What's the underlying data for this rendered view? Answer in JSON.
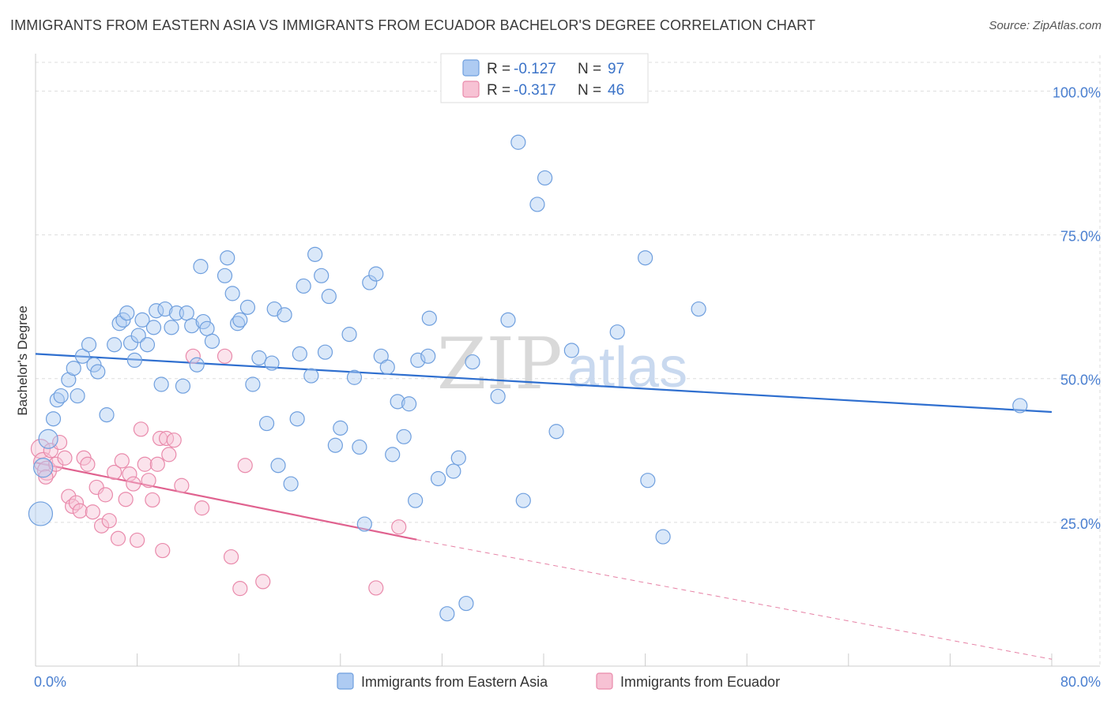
{
  "title": "IMMIGRANTS FROM EASTERN ASIA VS IMMIGRANTS FROM ECUADOR BACHELOR'S DEGREE CORRELATION CHART",
  "source": "Source: ZipAtlas.com",
  "colors": {
    "blue_fill": "#aecbf2",
    "blue_stroke": "#6f9fde",
    "blue_line": "#2f6fcf",
    "pink_fill": "#f7c2d4",
    "pink_stroke": "#e98aab",
    "pink_line": "#e0628f",
    "tick_text": "#4a7fd0",
    "grid": "#dddddd"
  },
  "legend": {
    "r_label": "R =",
    "n_label": "N =",
    "rows": [
      {
        "series": "blue",
        "r": "-0.127",
        "n": "97"
      },
      {
        "series": "pink",
        "r": "-0.317",
        "n": "46"
      }
    ]
  },
  "bottom_legend": [
    {
      "series": "blue",
      "label": "Immigrants from Eastern Asia"
    },
    {
      "series": "pink",
      "label": "Immigrants from Ecuador"
    }
  ],
  "watermark": {
    "part1": "ZIP",
    "part2": "atlas"
  },
  "chart_data": {
    "type": "scatter",
    "title": "IMMIGRANTS FROM EASTERN ASIA VS IMMIGRANTS FROM ECUADOR BACHELOR'S DEGREE CORRELATION CHART",
    "xlabel": "",
    "ylabel": "Bachelor's Degree",
    "xlim": [
      0,
      80
    ],
    "ylim": [
      0,
      105
    ],
    "x_tick_labels": [
      {
        "value": 0,
        "label": "0.0%"
      },
      {
        "value": 80,
        "label": "80.0%"
      }
    ],
    "y_tick_labels": [
      {
        "value": 25,
        "label": "25.0%"
      },
      {
        "value": 50,
        "label": "50.0%"
      },
      {
        "value": 75,
        "label": "75.0%"
      },
      {
        "value": 100,
        "label": "100.0%"
      }
    ],
    "grid": true,
    "legend_position": "top-center",
    "series": [
      {
        "name": "Immigrants from Eastern Asia",
        "key": "blue",
        "trend": {
          "x": [
            0,
            80
          ],
          "y": [
            54.3,
            44.2
          ]
        },
        "points": [
          [
            0.4,
            26.5
          ],
          [
            0.6,
            34.5
          ],
          [
            1.0,
            39.5
          ],
          [
            1.4,
            43.0
          ],
          [
            1.7,
            46.3
          ],
          [
            2.0,
            47.0
          ],
          [
            2.6,
            49.8
          ],
          [
            3.0,
            51.8
          ],
          [
            3.3,
            47.0
          ],
          [
            3.7,
            53.9
          ],
          [
            4.2,
            55.9
          ],
          [
            4.6,
            52.4
          ],
          [
            4.9,
            51.2
          ],
          [
            5.6,
            43.7
          ],
          [
            6.2,
            55.9
          ],
          [
            6.6,
            59.6
          ],
          [
            6.9,
            60.2
          ],
          [
            7.2,
            61.4
          ],
          [
            7.5,
            56.2
          ],
          [
            7.8,
            53.2
          ],
          [
            8.1,
            57.5
          ],
          [
            8.4,
            60.2
          ],
          [
            8.8,
            55.9
          ],
          [
            9.3,
            58.9
          ],
          [
            9.5,
            61.8
          ],
          [
            9.9,
            49.0
          ],
          [
            10.2,
            62.1
          ],
          [
            10.7,
            58.9
          ],
          [
            11.1,
            61.4
          ],
          [
            11.6,
            48.7
          ],
          [
            11.9,
            61.4
          ],
          [
            12.3,
            59.2
          ],
          [
            12.7,
            52.4
          ],
          [
            13.0,
            69.5
          ],
          [
            13.2,
            59.9
          ],
          [
            13.5,
            58.7
          ],
          [
            13.9,
            56.5
          ],
          [
            14.9,
            67.9
          ],
          [
            15.1,
            71.0
          ],
          [
            15.5,
            64.8
          ],
          [
            15.9,
            59.6
          ],
          [
            16.1,
            60.2
          ],
          [
            16.7,
            62.4
          ],
          [
            17.1,
            49.0
          ],
          [
            17.6,
            53.6
          ],
          [
            18.2,
            42.2
          ],
          [
            18.6,
            52.7
          ],
          [
            18.8,
            62.1
          ],
          [
            19.1,
            34.9
          ],
          [
            19.6,
            61.1
          ],
          [
            20.1,
            31.7
          ],
          [
            20.6,
            43.0
          ],
          [
            20.8,
            54.3
          ],
          [
            21.1,
            66.1
          ],
          [
            21.7,
            50.5
          ],
          [
            22.0,
            71.6
          ],
          [
            22.5,
            67.9
          ],
          [
            22.8,
            54.6
          ],
          [
            23.1,
            64.3
          ],
          [
            23.6,
            38.4
          ],
          [
            24.0,
            41.4
          ],
          [
            24.7,
            57.7
          ],
          [
            25.1,
            50.2
          ],
          [
            25.5,
            38.1
          ],
          [
            25.9,
            24.7
          ],
          [
            26.3,
            66.7
          ],
          [
            26.8,
            68.2
          ],
          [
            27.2,
            53.9
          ],
          [
            27.7,
            52.0
          ],
          [
            28.1,
            36.8
          ],
          [
            28.5,
            46.0
          ],
          [
            29.0,
            39.9
          ],
          [
            29.4,
            45.6
          ],
          [
            29.9,
            28.8
          ],
          [
            30.1,
            53.2
          ],
          [
            30.9,
            53.9
          ],
          [
            31.7,
            32.6
          ],
          [
            32.4,
            9.1
          ],
          [
            32.9,
            33.9
          ],
          [
            33.3,
            36.2
          ],
          [
            33.9,
            10.9
          ],
          [
            34.4,
            52.9
          ],
          [
            36.4,
            46.9
          ],
          [
            37.2,
            60.2
          ],
          [
            38.0,
            91.1
          ],
          [
            38.4,
            28.8
          ],
          [
            39.5,
            80.3
          ],
          [
            40.1,
            84.9
          ],
          [
            41.0,
            40.8
          ],
          [
            42.2,
            54.9
          ],
          [
            45.8,
            58.1
          ],
          [
            48.2,
            32.3
          ],
          [
            49.4,
            22.5
          ],
          [
            52.2,
            62.1
          ],
          [
            77.5,
            45.3
          ],
          [
            48.0,
            71.0
          ],
          [
            31.0,
            60.5
          ]
        ]
      },
      {
        "name": "Immigrants from Ecuador",
        "key": "pink",
        "trend": {
          "x": [
            0,
            30.0
          ],
          "y": [
            35.4,
            22.0
          ]
        },
        "trend_dashed": {
          "x": [
            30.0,
            80
          ],
          "y": [
            22.0,
            1.2
          ]
        },
        "points": [
          [
            0.4,
            37.8
          ],
          [
            0.6,
            35.5
          ],
          [
            0.9,
            34.0
          ],
          [
            1.2,
            37.5
          ],
          [
            1.6,
            35.1
          ],
          [
            1.9,
            38.9
          ],
          [
            2.3,
            36.2
          ],
          [
            2.6,
            29.5
          ],
          [
            2.9,
            27.8
          ],
          [
            3.2,
            28.4
          ],
          [
            3.5,
            27.0
          ],
          [
            3.8,
            36.2
          ],
          [
            4.1,
            35.1
          ],
          [
            4.5,
            26.8
          ],
          [
            4.8,
            31.1
          ],
          [
            5.2,
            24.4
          ],
          [
            5.5,
            29.8
          ],
          [
            5.8,
            25.3
          ],
          [
            6.2,
            33.7
          ],
          [
            6.5,
            22.2
          ],
          [
            6.8,
            35.7
          ],
          [
            7.1,
            29.0
          ],
          [
            7.4,
            33.4
          ],
          [
            7.7,
            31.7
          ],
          [
            8.0,
            21.9
          ],
          [
            8.3,
            41.2
          ],
          [
            8.6,
            35.1
          ],
          [
            8.9,
            32.3
          ],
          [
            9.2,
            28.9
          ],
          [
            9.6,
            35.1
          ],
          [
            9.8,
            39.6
          ],
          [
            10.0,
            20.1
          ],
          [
            10.3,
            39.6
          ],
          [
            10.5,
            36.8
          ],
          [
            10.9,
            39.3
          ],
          [
            11.5,
            31.4
          ],
          [
            12.4,
            53.9
          ],
          [
            13.1,
            27.5
          ],
          [
            14.9,
            53.9
          ],
          [
            15.4,
            19.0
          ],
          [
            16.1,
            13.5
          ],
          [
            16.5,
            34.9
          ],
          [
            17.9,
            14.7
          ],
          [
            26.8,
            13.6
          ],
          [
            28.6,
            24.2
          ],
          [
            0.8,
            32.9
          ]
        ]
      }
    ]
  }
}
